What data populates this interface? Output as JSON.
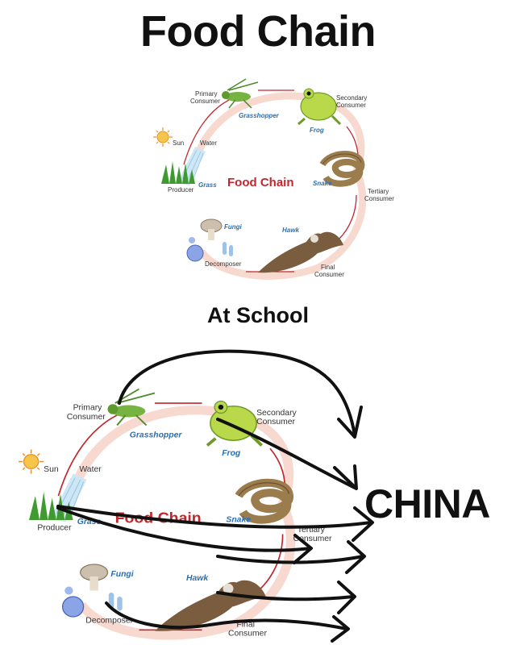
{
  "title": "Food Chain",
  "subtitle": "At School",
  "overlay_label": "CHINA",
  "diagram": {
    "center_label": "Food Chain",
    "sun": "Sun",
    "water": "Water",
    "producer": "Producer",
    "grass": "Grass",
    "primary_consumer_1": "Primary",
    "primary_consumer_2": "Consumer",
    "grasshopper": "Grasshopper",
    "secondary_consumer_1": "Secondary",
    "secondary_consumer_2": "Consumer",
    "frog": "Frog",
    "snake": "Snake",
    "tertiary_consumer_1": "Tertiary",
    "tertiary_consumer_2": "Consumer",
    "hawk": "Hawk",
    "final_consumer_1": "Final",
    "final_consumer_2": "Consumer",
    "fungi": "Fungi",
    "decomposer": "Decomposer"
  },
  "colors": {
    "cycle_ring": "#f7d9cf",
    "cycle_arrow": "#c1272d",
    "center_text": "#c1272d",
    "species_text": "#2a6fb0",
    "marker": "#111111"
  },
  "icons": [
    "sun-icon",
    "water-icon",
    "grass-icon",
    "grasshopper-icon",
    "frog-icon",
    "snake-icon",
    "hawk-icon",
    "mushroom-icon",
    "bacteria-icon"
  ]
}
